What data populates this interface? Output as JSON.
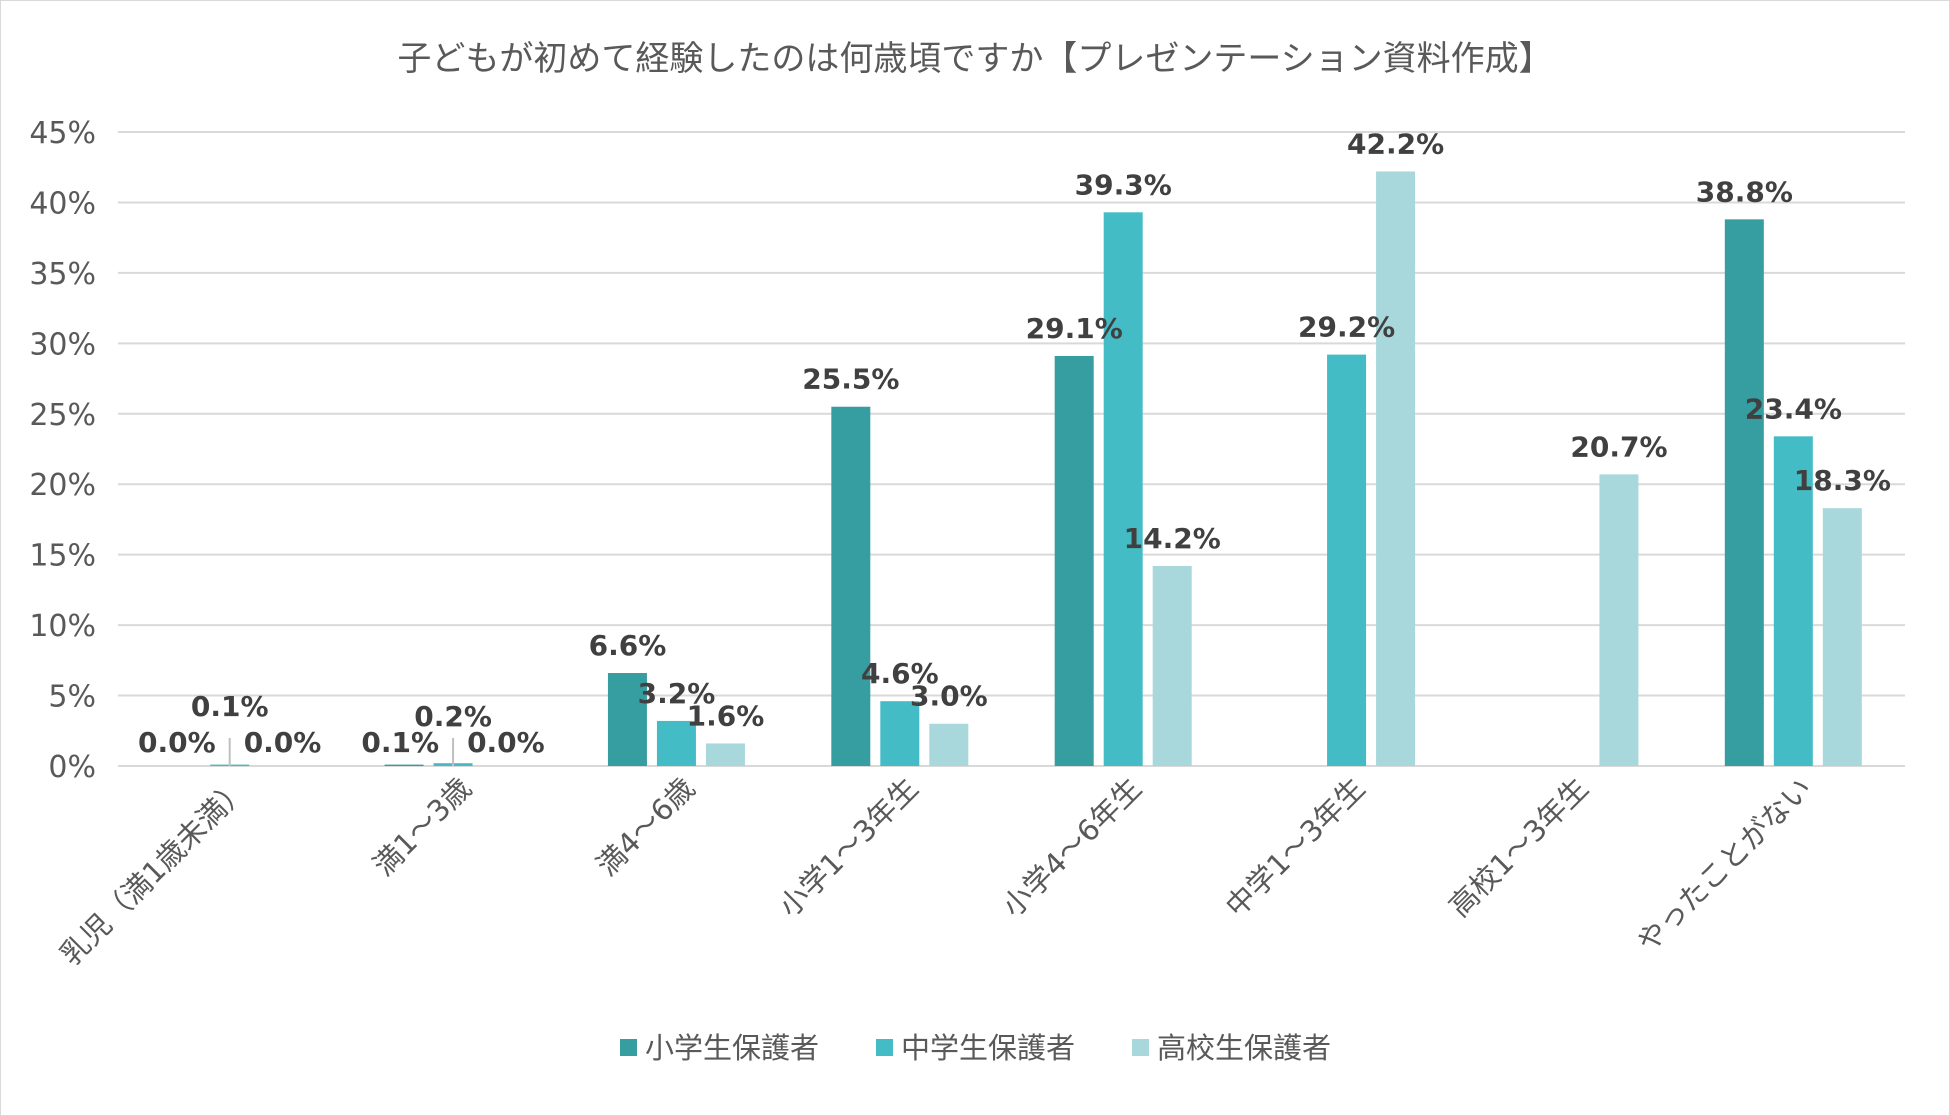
{
  "chart_data": {
    "type": "bar",
    "title": "子どもが初めて経験したのは何歳頃ですか【プレゼンテーション資料作成】",
    "categories": [
      "乳児（満1歳未満）",
      "満1～3歳",
      "満4～6歳",
      "小学1～3年生",
      "小学4～6年生",
      "中学1～3年生",
      "高校1～3年生",
      "やったことがない"
    ],
    "series": [
      {
        "name": "小学生保護者",
        "color": "#369DA1",
        "values": [
          0.0,
          0.1,
          6.6,
          25.5,
          29.1,
          null,
          null,
          38.8
        ],
        "labels": [
          "0.0%",
          "0.1%",
          "6.6%",
          "25.5%",
          "29.1%",
          "",
          "",
          "38.8%"
        ]
      },
      {
        "name": "中学生保護者",
        "color": "#44BCC6",
        "values": [
          0.1,
          0.2,
          3.2,
          4.6,
          39.3,
          29.2,
          null,
          23.4
        ],
        "labels": [
          "0.1%",
          "0.2%",
          "3.2%",
          "4.6%",
          "39.3%",
          "29.2%",
          "",
          "23.4%"
        ]
      },
      {
        "name": "高校生保護者",
        "color": "#A8D8DC",
        "values": [
          0.0,
          0.0,
          1.6,
          3.0,
          14.2,
          42.2,
          20.7,
          18.3
        ],
        "labels": [
          "0.0%",
          "0.0%",
          "1.6%",
          "3.0%",
          "14.2%",
          "42.2%",
          "20.7%",
          "18.3%"
        ]
      }
    ],
    "ylim": [
      0,
      45
    ],
    "yticks": [
      0,
      5,
      10,
      15,
      20,
      25,
      30,
      35,
      40,
      45
    ],
    "ytick_labels": [
      "0%",
      "5%",
      "10%",
      "15%",
      "20%",
      "25%",
      "30%",
      "35%",
      "40%",
      "45%"
    ],
    "grid": true,
    "legend": "bottom-center"
  }
}
